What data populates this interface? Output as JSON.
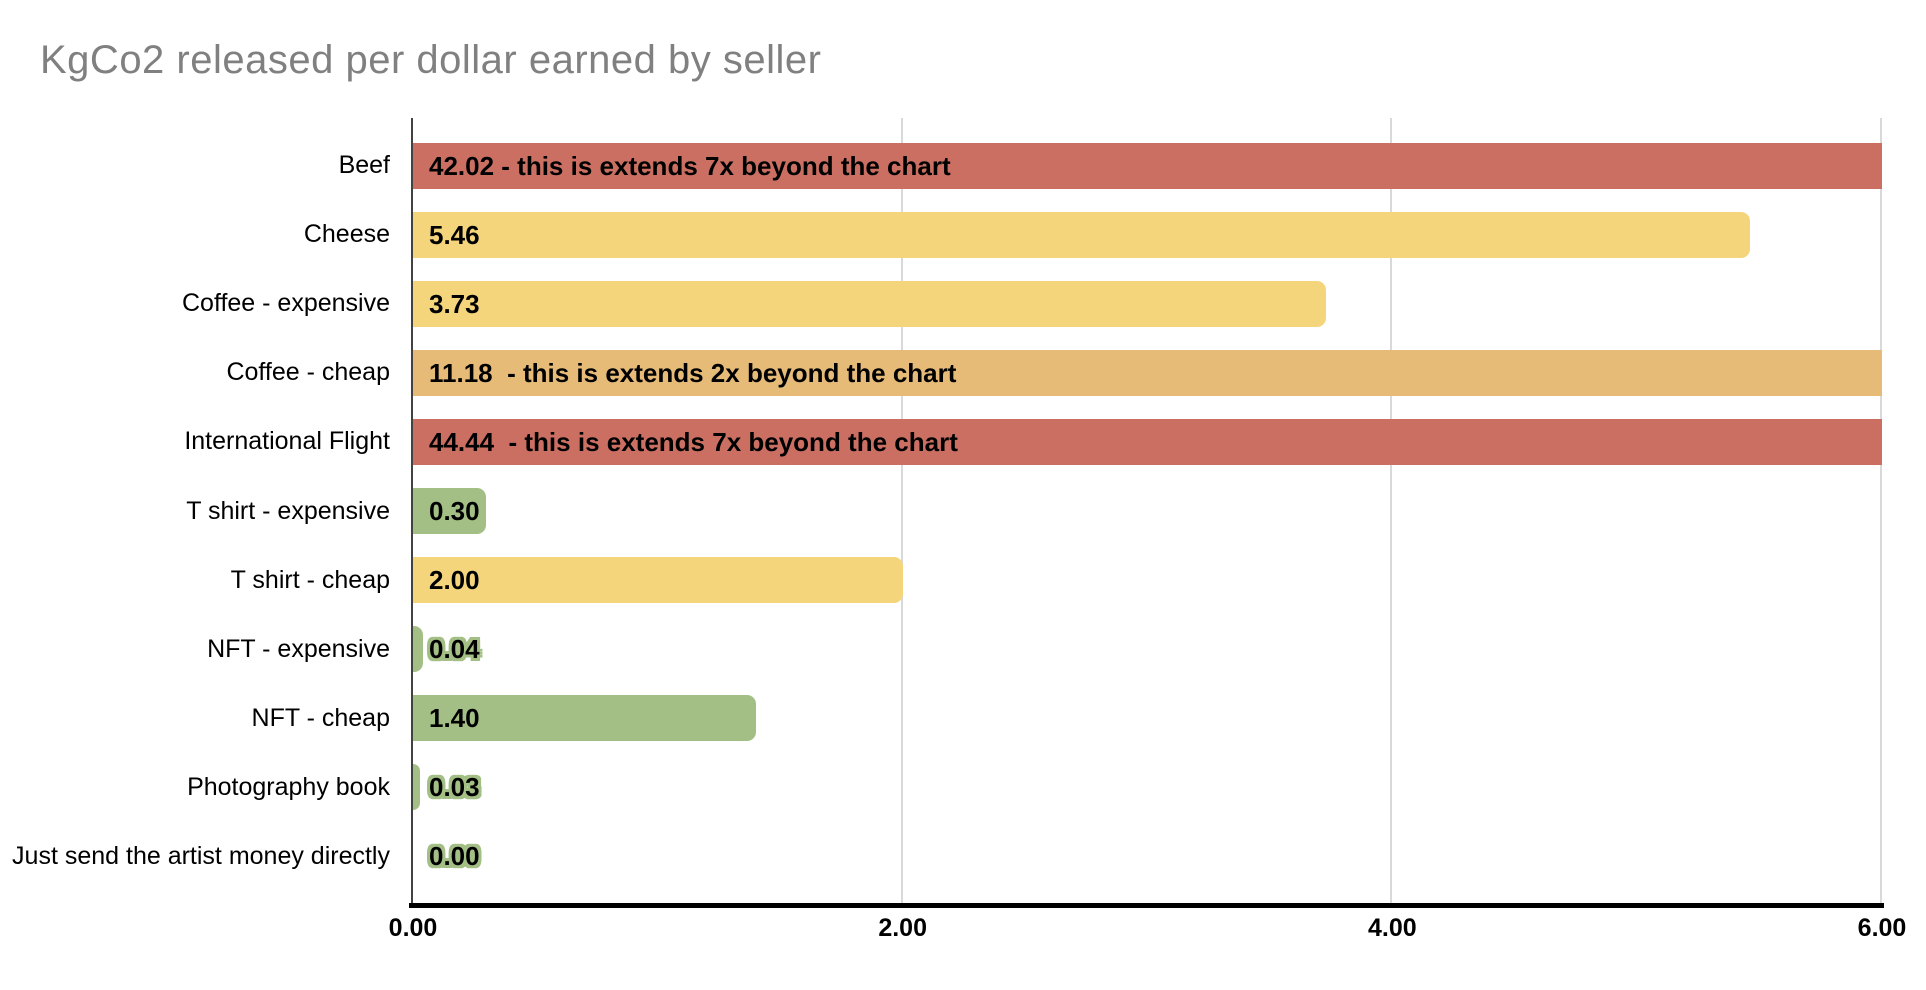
{
  "page_title": "KgCo2 released per dollar earned by seller",
  "colors": {
    "red": "#cb6f63",
    "yellow": "#f5d57c",
    "tan": "#e6bb78",
    "green": "#a3bf85",
    "title_gray": "#808080",
    "gridline_gray": "#d9d9d9",
    "axis_black": "#000000"
  },
  "chart_data": {
    "type": "bar",
    "orientation": "horizontal",
    "title": "KgCo2 released per dollar earned by seller",
    "xlabel": "",
    "ylabel": "",
    "xlim": [
      0,
      6
    ],
    "x_ticks": [
      "0.00",
      "2.00",
      "4.00",
      "6.00"
    ],
    "x_tick_values": [
      0,
      2,
      4,
      6
    ],
    "grid": "vertical-gridlines-on",
    "legend": "none",
    "categories": [
      "Beef",
      "Cheese",
      "Coffee - expensive",
      "Coffee - cheap",
      "International Flight",
      "T shirt - expensive",
      "T shirt - cheap",
      "NFT - expensive",
      "NFT - cheap",
      "Photography book",
      "Just send the artist money directly"
    ],
    "values": [
      42.02,
      5.46,
      3.73,
      11.18,
      44.44,
      0.3,
      2.0,
      0.04,
      1.4,
      0.03,
      0.0
    ],
    "bar_labels": [
      "42.02 - this is extends 7x beyond the chart",
      "5.46",
      "3.73",
      "11.18  - this is extends 2x beyond the chart",
      "44.44  - this is extends 7x beyond the chart",
      "0.30",
      "2.00",
      "0.04",
      "1.40",
      "0.03",
      "0.00"
    ],
    "bar_colors": [
      "#cb6f63",
      "#f5d57c",
      "#f5d57c",
      "#e6bb78",
      "#cb6f63",
      "#a3bf85",
      "#f5d57c",
      "#a3bf85",
      "#a3bf85",
      "#a3bf85",
      "#a3bf85"
    ],
    "clipped_at_right_edge": [
      true,
      false,
      false,
      true,
      true,
      false,
      false,
      false,
      false,
      false,
      false
    ],
    "label_halo": [
      false,
      false,
      false,
      false,
      false,
      false,
      false,
      true,
      false,
      true,
      true
    ]
  }
}
